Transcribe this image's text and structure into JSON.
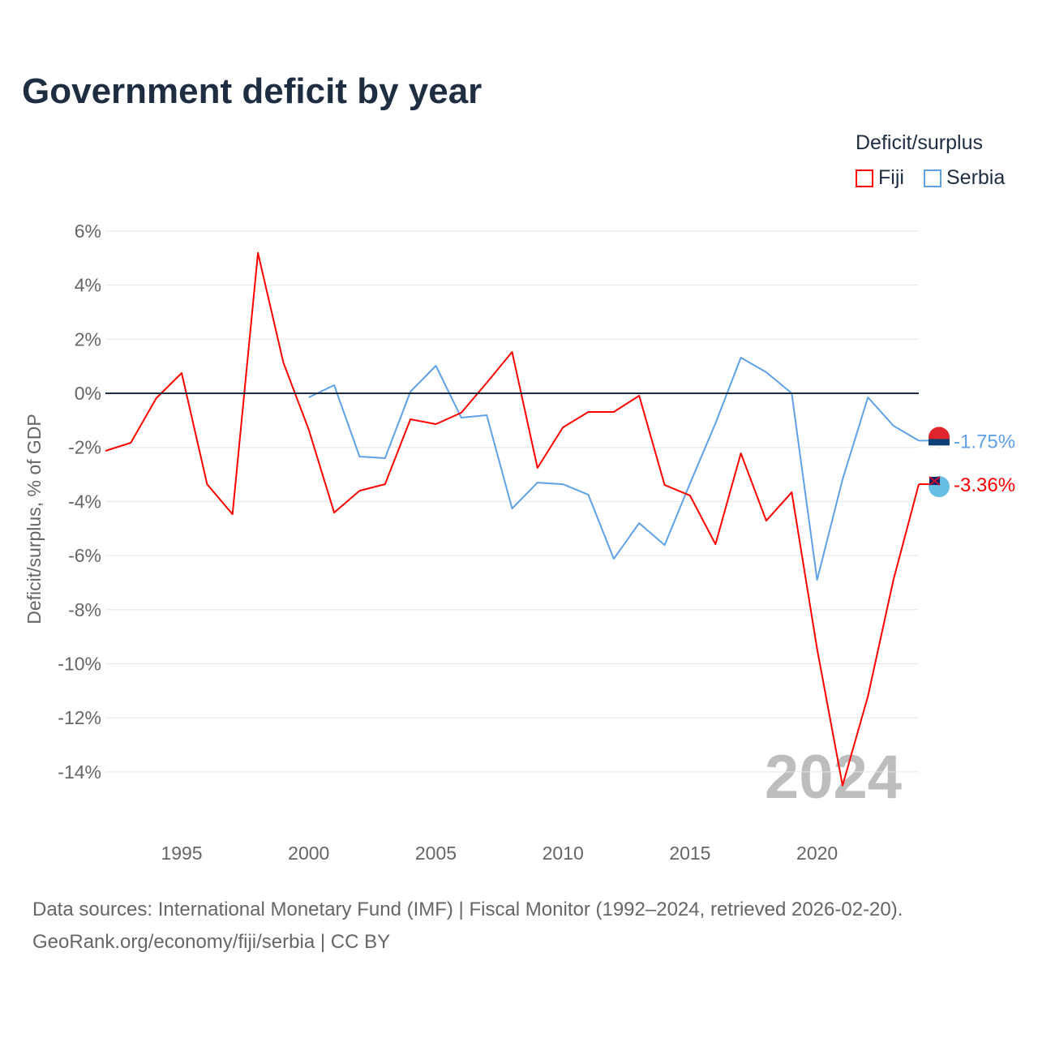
{
  "title": "Government deficit by year",
  "legend": {
    "title": "Deficit/surplus",
    "items": [
      {
        "name": "Fiji",
        "color": "#ff0000"
      },
      {
        "name": "Serbia",
        "color": "#5ea1e6"
      }
    ]
  },
  "footer": {
    "line1": "Data sources: International Monetary Fund (IMF) | Fiscal Monitor (1992–2024, retrieved 2026-02-20).",
    "line2": "GeoRank.org/economy/fiji/serbia | CC BY"
  },
  "chart_data": {
    "type": "line",
    "title": "Government deficit by year",
    "xlabel": "",
    "ylabel": "Deficit/surplus, % of GDP",
    "xlim": [
      1992,
      2024
    ],
    "ylim": [
      -16,
      6
    ],
    "xticks": [
      1995,
      2000,
      2005,
      2010,
      2015,
      2020
    ],
    "yticks": [
      6,
      4,
      2,
      0,
      -2,
      -4,
      -6,
      -8,
      -10,
      -12,
      -14
    ],
    "ytick_labels": [
      "6%",
      "4%",
      "2%",
      "0%",
      "-2%",
      "-4%",
      "-6%",
      "-8%",
      "-10%",
      "-12%",
      "-14%"
    ],
    "year_watermark": "2024",
    "series": [
      {
        "name": "Fiji",
        "color": "#ff0000",
        "end_label": "-3.36%",
        "x": [
          1992,
          1993,
          1994,
          1995,
          1996,
          1997,
          1998,
          1999,
          2000,
          2001,
          2002,
          2003,
          2004,
          2005,
          2006,
          2007,
          2008,
          2009,
          2010,
          2011,
          2012,
          2013,
          2014,
          2015,
          2016,
          2017,
          2018,
          2019,
          2020,
          2021,
          2022,
          2023,
          2024
        ],
        "values": [
          -2.13,
          -1.83,
          -0.18,
          0.75,
          -3.36,
          -4.47,
          5.19,
          1.14,
          -1.35,
          -4.41,
          -3.6,
          -3.36,
          -0.96,
          -1.14,
          -0.72,
          0.39,
          1.53,
          -2.76,
          -1.26,
          -0.69,
          -0.69,
          -0.09,
          -3.39,
          -3.78,
          -5.58,
          -2.22,
          -4.71,
          -3.66,
          -9.45,
          -14.5,
          -11.2,
          -6.9,
          -3.36
        ]
      },
      {
        "name": "Serbia",
        "color": "#5ea1e6",
        "end_label": "-1.75%",
        "x": [
          2000,
          2001,
          2002,
          2003,
          2004,
          2005,
          2006,
          2007,
          2008,
          2009,
          2010,
          2011,
          2012,
          2013,
          2014,
          2015,
          2016,
          2017,
          2018,
          2019,
          2020,
          2021,
          2022,
          2023,
          2024
        ],
        "values": [
          -0.15,
          0.3,
          -2.34,
          -2.4,
          0.06,
          1.02,
          -0.9,
          -0.81,
          -4.26,
          -3.3,
          -3.36,
          -3.75,
          -6.12,
          -4.8,
          -5.61,
          -3.33,
          -1.11,
          1.32,
          0.78,
          0.0,
          -6.9,
          -3.18,
          -0.15,
          -1.2,
          -1.75
        ]
      }
    ]
  }
}
